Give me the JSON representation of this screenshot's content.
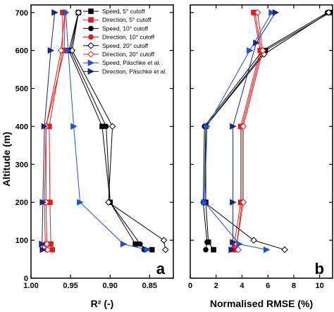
{
  "chart_data": {
    "type": "line",
    "ylabel": "Altitude (m)",
    "ylim": [
      0,
      720
    ],
    "yticks": [
      0,
      100,
      200,
      300,
      400,
      500,
      600,
      700
    ],
    "legend_position": "top-right of panel a",
    "colors": {
      "black": "#000000",
      "red": "#e41a1c",
      "blue": "#1f4fd8",
      "navy": "#1a237e"
    },
    "panels": [
      {
        "id": "a",
        "panel_label": "a",
        "xlabel": "R² (-)",
        "xlim": [
          1.0,
          0.82
        ],
        "xticks": [
          1.0,
          0.95,
          0.9,
          0.85
        ],
        "xtick_labels": [
          "1.00",
          "0.95",
          "0.90",
          "0.85"
        ],
        "series": [
          {
            "name": "Speed, 5° cutoff",
            "color": "#000000",
            "marker": "square-filled",
            "points": [
              [
                0.847,
                75
              ],
              [
                0.868,
                90
              ],
              [
                0.9,
                200
              ],
              [
                0.91,
                400
              ],
              [
                0.952,
                600
              ],
              [
                0.94,
                700
              ]
            ]
          },
          {
            "name": "Direction, 5° cutoff",
            "color": "#e41a1c",
            "marker": "square-filled",
            "points": [
              [
                0.973,
                75
              ],
              [
                0.975,
                90
              ],
              [
                0.976,
                200
              ],
              [
                0.977,
                400
              ],
              [
                0.96,
                600
              ],
              [
                0.96,
                700
              ]
            ]
          },
          {
            "name": "Speed, 10° cutoff",
            "color": "#000000",
            "marker": "circle-filled",
            "points": [
              [
                0.857,
                75
              ],
              [
                0.862,
                90
              ],
              [
                0.9,
                200
              ],
              [
                0.905,
                400
              ],
              [
                0.95,
                600
              ],
              [
                0.94,
                700
              ]
            ]
          },
          {
            "name": "Direction, 10° cutoff",
            "color": "#e41a1c",
            "marker": "circle-filled",
            "points": [
              [
                0.98,
                75
              ],
              [
                0.982,
                90
              ],
              [
                0.983,
                200
              ],
              [
                0.981,
                400
              ],
              [
                0.958,
                600
              ],
              [
                0.957,
                700
              ]
            ]
          },
          {
            "name": "Speed, 20° cutoff",
            "color": "#000000",
            "marker": "diamond-open",
            "points": [
              [
                0.83,
                75
              ],
              [
                0.832,
                100
              ],
              [
                0.902,
                200
              ],
              [
                0.897,
                400
              ],
              [
                0.948,
                600
              ],
              [
                0.94,
                700
              ]
            ]
          },
          {
            "name": "Direction, 20° cutoff",
            "color": "#e41a1c",
            "marker": "diamond-open",
            "points": [
              [
                0.979,
                75
              ],
              [
                0.98,
                90
              ],
              [
                0.981,
                200
              ],
              [
                0.981,
                400
              ],
              [
                0.962,
                600
              ],
              [
                0.957,
                700
              ]
            ]
          },
          {
            "name": "Speed, Päschke et al.",
            "color": "#1f4fd8",
            "marker": "triangle-right",
            "points": [
              [
                0.853,
                75
              ],
              [
                0.883,
                90
              ],
              [
                0.938,
                200
              ],
              [
                0.946,
                400
              ],
              [
                0.953,
                600
              ],
              [
                0.956,
                700
              ]
            ]
          },
          {
            "name": "Direction, Päschke et al.",
            "color": "#1a237e",
            "marker": "triangle-right",
            "points": [
              [
                0.985,
                75
              ],
              [
                0.986,
                90
              ],
              [
                0.985,
                200
              ],
              [
                0.983,
                400
              ],
              [
                0.975,
                600
              ],
              [
                0.97,
                700
              ]
            ]
          }
        ]
      },
      {
        "id": "b",
        "panel_label": "b",
        "xlabel": "Normalised RMSE (%)",
        "xlim": [
          0,
          11
        ],
        "xticks": [
          0,
          2,
          4,
          6,
          8,
          10
        ],
        "xtick_labels": [
          "0",
          "2",
          "4",
          "6",
          "8",
          "10"
        ],
        "series": [
          {
            "name": "Speed, 5° cutoff",
            "color": "#000000",
            "marker": "square-filled",
            "points": [
              [
                1.8,
                75
              ],
              [
                1.4,
                95
              ],
              [
                1.2,
                200
              ],
              [
                1.2,
                400
              ],
              [
                5.8,
                600
              ],
              [
                10.8,
                700
              ]
            ]
          },
          {
            "name": "Direction, 5° cutoff",
            "color": "#e41a1c",
            "marker": "square-filled",
            "points": [
              [
                3.3,
                75
              ],
              [
                3.4,
                90
              ],
              [
                3.9,
                200
              ],
              [
                3.9,
                400
              ],
              [
                5.4,
                600
              ],
              [
                4.9,
                700
              ]
            ]
          },
          {
            "name": "Speed, 10° cutoff",
            "color": "#000000",
            "marker": "circle-filled",
            "points": [
              [
                1.2,
                75
              ],
              [
                1.3,
                95
              ],
              [
                1.0,
                200
              ],
              [
                1.1,
                400
              ],
              [
                5.6,
                600
              ],
              [
                10.6,
                700
              ]
            ]
          },
          {
            "name": "Direction, 10° cutoff",
            "color": "#e41a1c",
            "marker": "circle-filled",
            "points": [
              [
                3.5,
                75
              ],
              [
                3.6,
                90
              ],
              [
                4.0,
                200
              ],
              [
                4.0,
                400
              ],
              [
                5.5,
                600
              ],
              [
                5.0,
                700
              ]
            ]
          },
          {
            "name": "Speed, 20° cutoff",
            "color": "#000000",
            "marker": "diamond-open",
            "points": [
              [
                7.3,
                75
              ],
              [
                4.9,
                100
              ],
              [
                1.1,
                200
              ],
              [
                1.2,
                400
              ],
              [
                5.7,
                590
              ],
              [
                10.7,
                700
              ]
            ]
          },
          {
            "name": "Direction, 20° cutoff",
            "color": "#e41a1c",
            "marker": "diamond-open",
            "points": [
              [
                3.7,
                75
              ],
              [
                3.6,
                90
              ],
              [
                4.1,
                200
              ],
              [
                4.1,
                400
              ],
              [
                5.6,
                600
              ],
              [
                5.2,
                700
              ]
            ]
          },
          {
            "name": "Speed, Päschke et al.",
            "color": "#1f4fd8",
            "marker": "triangle-right",
            "points": [
              [
                5.9,
                75
              ],
              [
                3.8,
                90
              ],
              [
                1.1,
                200
              ],
              [
                1.3,
                400
              ],
              [
                4.6,
                600
              ],
              [
                6.3,
                700
              ]
            ]
          },
          {
            "name": "Direction, Päschke et al.",
            "color": "#1a237e",
            "marker": "triangle-right",
            "points": [
              [
                3.2,
                75
              ],
              [
                3.3,
                95
              ],
              [
                3.3,
                200
              ],
              [
                3.3,
                400
              ],
              [
                5.1,
                620
              ],
              [
                6.6,
                700
              ]
            ]
          }
        ]
      }
    ]
  }
}
